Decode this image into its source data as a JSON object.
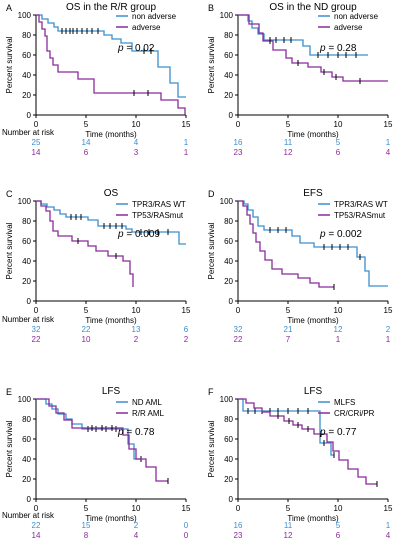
{
  "colors": {
    "blue": "#3a8fd0",
    "purple": "#8a2b9a",
    "axis": "#000000"
  },
  "risk_header": "Number at risk",
  "chart_data": [
    {
      "panel": "A",
      "type": "line",
      "step": true,
      "title": "OS in the R/R group",
      "xlabel": "Time (months)",
      "ylabel": "Percent survival",
      "xlim": [
        0,
        15
      ],
      "ylim": [
        0,
        100
      ],
      "xticks": [
        0,
        5,
        10,
        15
      ],
      "yticks": [
        0,
        20,
        40,
        60,
        80,
        100
      ],
      "pvalue": "= 0.02",
      "series": [
        {
          "name": "non adverse",
          "color": "#3a8fd0",
          "steps": [
            [
              0,
              100
            ],
            [
              0.6,
              96
            ],
            [
              1.2,
              92
            ],
            [
              1.8,
              88
            ],
            [
              2.2,
              84
            ],
            [
              6.8,
              80
            ],
            [
              7.6,
              76
            ],
            [
              8.5,
              72
            ],
            [
              9.6,
              64
            ],
            [
              12.2,
              48
            ],
            [
              13.4,
              32
            ],
            [
              14.2,
              18
            ],
            [
              15,
              18
            ]
          ],
          "censors": [
            [
              2.6,
              84
            ],
            [
              3.0,
              84
            ],
            [
              3.4,
              84
            ],
            [
              3.7,
              84
            ],
            [
              4.1,
              84
            ],
            [
              4.6,
              84
            ],
            [
              5.1,
              84
            ],
            [
              5.6,
              84
            ],
            [
              6.2,
              84
            ],
            [
              10.8,
              64
            ],
            [
              11.5,
              64
            ]
          ],
          "risk": [
            25,
            14,
            4,
            1
          ]
        },
        {
          "name": "adverse",
          "color": "#8a2b9a",
          "steps": [
            [
              0,
              100
            ],
            [
              0.3,
              93
            ],
            [
              0.6,
              86
            ],
            [
              0.9,
              79
            ],
            [
              1.1,
              64
            ],
            [
              1.4,
              57
            ],
            [
              1.7,
              50
            ],
            [
              2.2,
              43
            ],
            [
              4.2,
              36
            ],
            [
              5.8,
              22
            ],
            [
              12.5,
              15
            ],
            [
              14.2,
              7
            ],
            [
              14.9,
              0
            ]
          ],
          "censors": [
            [
              9.8,
              22
            ],
            [
              11.2,
              22
            ]
          ],
          "risk": [
            14,
            6,
            3,
            1
          ]
        }
      ]
    },
    {
      "panel": "B",
      "type": "line",
      "step": true,
      "title": "OS in the ND group",
      "xlabel": "Time (months)",
      "ylabel": "Percent survival",
      "xlim": [
        0,
        15
      ],
      "ylim": [
        0,
        100
      ],
      "xticks": [
        0,
        5,
        10,
        15
      ],
      "yticks": [
        0,
        20,
        40,
        60,
        80,
        100
      ],
      "pvalue": "= 0.28",
      "series": [
        {
          "name": "non adverse",
          "color": "#3a8fd0",
          "steps": [
            [
              0,
              100
            ],
            [
              1.0,
              94
            ],
            [
              1.4,
              87
            ],
            [
              2.0,
              81
            ],
            [
              2.6,
              75
            ],
            [
              6.5,
              69
            ],
            [
              7.2,
              60
            ],
            [
              13.0,
              60
            ]
          ],
          "censors": [
            [
              3.2,
              75
            ],
            [
              3.8,
              75
            ],
            [
              4.6,
              75
            ],
            [
              5.3,
              75
            ],
            [
              8.0,
              60
            ],
            [
              9.0,
              60
            ],
            [
              10.0,
              60
            ],
            [
              10.8,
              60
            ],
            [
              11.8,
              60
            ]
          ],
          "risk": [
            16,
            11,
            5,
            1
          ]
        },
        {
          "name": "adverse",
          "color": "#8a2b9a",
          "steps": [
            [
              0,
              100
            ],
            [
              1.1,
              91
            ],
            [
              2.1,
              82
            ],
            [
              2.5,
              74
            ],
            [
              3.5,
              65
            ],
            [
              4.8,
              57
            ],
            [
              5.4,
              52
            ],
            [
              7.0,
              48
            ],
            [
              8.3,
              43
            ],
            [
              9.4,
              38
            ],
            [
              10.5,
              34
            ],
            [
              15.0,
              34
            ]
          ],
          "censors": [
            [
              3.2,
              74
            ],
            [
              6.0,
              52
            ],
            [
              8.6,
              43
            ],
            [
              9.8,
              38
            ],
            [
              12.2,
              34
            ]
          ],
          "risk": [
            23,
            12,
            6,
            4
          ]
        }
      ]
    },
    {
      "panel": "C",
      "type": "line",
      "step": true,
      "title": "OS",
      "xlabel": "Time (months)",
      "ylabel": "Percent survival",
      "xlim": [
        0,
        15
      ],
      "ylim": [
        0,
        100
      ],
      "xticks": [
        0,
        5,
        10,
        15
      ],
      "yticks": [
        0,
        20,
        40,
        60,
        80,
        100
      ],
      "pvalue": "= 0.009",
      "series": [
        {
          "name": "TPR3/RAS WT",
          "color": "#3a8fd0",
          "steps": [
            [
              0,
              100
            ],
            [
              0.5,
              97
            ],
            [
              1.1,
              94
            ],
            [
              1.8,
              91
            ],
            [
              2.4,
              87
            ],
            [
              3.0,
              84
            ],
            [
              5.2,
              81
            ],
            [
              6.2,
              75
            ],
            [
              9.0,
              72
            ],
            [
              9.6,
              69
            ],
            [
              14.3,
              57
            ],
            [
              15.0,
              57
            ]
          ],
          "censors": [
            [
              3.5,
              84
            ],
            [
              4.0,
              84
            ],
            [
              4.5,
              84
            ],
            [
              6.8,
              75
            ],
            [
              7.4,
              75
            ],
            [
              8.0,
              75
            ],
            [
              8.6,
              75
            ],
            [
              10.5,
              69
            ],
            [
              11.3,
              69
            ],
            [
              12.2,
              69
            ],
            [
              13.2,
              69
            ]
          ],
          "risk": [
            32,
            22,
            13,
            6
          ]
        },
        {
          "name": "TP53/RASmut",
          "color": "#8a2b9a",
          "steps": [
            [
              0,
              100
            ],
            [
              0.5,
              95
            ],
            [
              1.0,
              90
            ],
            [
              1.4,
              80
            ],
            [
              1.7,
              70
            ],
            [
              2.2,
              65
            ],
            [
              3.6,
              60
            ],
            [
              5.2,
              55
            ],
            [
              6.0,
              50
            ],
            [
              7.2,
              45
            ],
            [
              8.7,
              40
            ],
            [
              9.4,
              27
            ],
            [
              9.7,
              14
            ]
          ],
          "censors": [
            [
              4.2,
              60
            ],
            [
              8.0,
              45
            ]
          ],
          "risk": [
            22,
            10,
            2,
            2
          ]
        }
      ]
    },
    {
      "panel": "D",
      "type": "line",
      "step": true,
      "title": "EFS",
      "xlabel": "Time (months)",
      "ylabel": "Percent survival",
      "xlim": [
        0,
        15
      ],
      "ylim": [
        0,
        100
      ],
      "xticks": [
        0,
        5,
        10,
        15
      ],
      "yticks": [
        0,
        20,
        40,
        60,
        80,
        100
      ],
      "pvalue": "= 0.002",
      "series": [
        {
          "name": "TPR3/RAS WT",
          "color": "#3a8fd0",
          "steps": [
            [
              0,
              100
            ],
            [
              0.6,
              97
            ],
            [
              1.0,
              91
            ],
            [
              1.5,
              84
            ],
            [
              2.0,
              75
            ],
            [
              2.6,
              71
            ],
            [
              5.4,
              65
            ],
            [
              6.2,
              58
            ],
            [
              7.6,
              54
            ],
            [
              11.9,
              44
            ],
            [
              12.7,
              30
            ],
            [
              13.1,
              15
            ],
            [
              15.0,
              15
            ]
          ],
          "censors": [
            [
              3.2,
              71
            ],
            [
              4.0,
              71
            ],
            [
              4.8,
              71
            ],
            [
              8.6,
              54
            ],
            [
              9.4,
              54
            ],
            [
              10.2,
              54
            ],
            [
              11.0,
              54
            ],
            [
              12.2,
              44
            ]
          ],
          "risk": [
            32,
            21,
            12,
            2
          ]
        },
        {
          "name": "TP53/RASmut",
          "color": "#8a2b9a",
          "steps": [
            [
              0,
              100
            ],
            [
              0.5,
              95
            ],
            [
              0.9,
              86
            ],
            [
              1.2,
              77
            ],
            [
              1.5,
              68
            ],
            [
              1.8,
              59
            ],
            [
              2.2,
              50
            ],
            [
              2.7,
              41
            ],
            [
              3.4,
              32
            ],
            [
              4.4,
              27
            ],
            [
              6.0,
              23
            ],
            [
              7.2,
              18
            ],
            [
              8.1,
              14
            ],
            [
              9.6,
              14
            ]
          ],
          "censors": [
            [
              9.6,
              14
            ]
          ],
          "risk": [
            22,
            7,
            1,
            1
          ]
        }
      ]
    },
    {
      "panel": "E",
      "type": "line",
      "step": true,
      "title": "LFS",
      "xlabel": "Time (months)",
      "ylabel": "Percent survival",
      "xlim": [
        0,
        15
      ],
      "ylim": [
        0,
        100
      ],
      "xticks": [
        0,
        5,
        10,
        15
      ],
      "yticks": [
        0,
        20,
        40,
        60,
        80,
        100
      ],
      "pvalue": "= 0.78",
      "series": [
        {
          "name": "ND AML",
          "color": "#3a8fd0",
          "steps": [
            [
              0,
              100
            ],
            [
              1.0,
              95
            ],
            [
              1.6,
              90
            ],
            [
              2.2,
              85
            ],
            [
              3.0,
              80
            ],
            [
              3.6,
              75
            ],
            [
              4.6,
              70
            ],
            [
              9.2,
              55
            ],
            [
              9.8,
              40
            ],
            [
              10.5,
              40
            ]
          ],
          "censors": [
            [
              5.2,
              70
            ],
            [
              6.0,
              70
            ],
            [
              7.0,
              70
            ],
            [
              8.0,
              70
            ],
            [
              10.5,
              40
            ]
          ],
          "risk": [
            22,
            15,
            2,
            0
          ]
        },
        {
          "name": "R/R AML",
          "color": "#8a2b9a",
          "steps": [
            [
              0,
              100
            ],
            [
              1.3,
              93
            ],
            [
              2.0,
              86
            ],
            [
              2.8,
              79
            ],
            [
              3.6,
              71
            ],
            [
              8.7,
              64
            ],
            [
              9.3,
              50
            ],
            [
              10.0,
              40
            ],
            [
              11.0,
              32
            ],
            [
              12.0,
              18
            ],
            [
              13.2,
              18
            ]
          ],
          "censors": [
            [
              5.6,
              71
            ],
            [
              6.6,
              71
            ],
            [
              7.6,
              71
            ],
            [
              13.2,
              18
            ]
          ],
          "risk": [
            14,
            8,
            4,
            0
          ]
        }
      ]
    },
    {
      "panel": "F",
      "type": "line",
      "step": true,
      "title": "LFS",
      "xlabel": "Time (months)",
      "ylabel": "Percent survival",
      "xlim": [
        0,
        15
      ],
      "ylim": [
        0,
        100
      ],
      "xticks": [
        0,
        5,
        10,
        15
      ],
      "yticks": [
        0,
        20,
        40,
        60,
        80,
        100
      ],
      "pvalue": "= 0.77",
      "series": [
        {
          "name": "MLFS",
          "color": "#3a8fd0",
          "steps": [
            [
              0,
              100
            ],
            [
              0.5,
              88
            ],
            [
              8.2,
              56
            ],
            [
              9.3,
              44
            ],
            [
              9.6,
              44
            ]
          ],
          "censors": [
            [
              1.0,
              88
            ],
            [
              1.7,
              88
            ],
            [
              2.4,
              88
            ],
            [
              3.2,
              88
            ],
            [
              4.0,
              88
            ],
            [
              5.0,
              88
            ],
            [
              6.0,
              88
            ],
            [
              7.0,
              88
            ],
            [
              8.6,
              56
            ],
            [
              9.6,
              44
            ]
          ],
          "risk": [
            16,
            11,
            5,
            1
          ]
        },
        {
          "name": "CR/CRi/PR",
          "color": "#8a2b9a",
          "steps": [
            [
              0,
              100
            ],
            [
              0.8,
              96
            ],
            [
              1.6,
              91
            ],
            [
              2.4,
              87
            ],
            [
              3.2,
              83
            ],
            [
              4.6,
              78
            ],
            [
              5.5,
              74
            ],
            [
              6.4,
              70
            ],
            [
              7.6,
              65
            ],
            [
              8.9,
              57
            ],
            [
              9.5,
              48
            ],
            [
              10.1,
              39
            ],
            [
              11.0,
              30
            ],
            [
              12.0,
              22
            ],
            [
              12.8,
              15
            ],
            [
              13.9,
              15
            ]
          ],
          "censors": [
            [
              4.0,
              83
            ],
            [
              5.1,
              78
            ],
            [
              6.0,
              74
            ],
            [
              7.0,
              70
            ],
            [
              8.3,
              65
            ],
            [
              13.9,
              15
            ]
          ],
          "risk": [
            23,
            12,
            6,
            4
          ]
        }
      ]
    }
  ]
}
